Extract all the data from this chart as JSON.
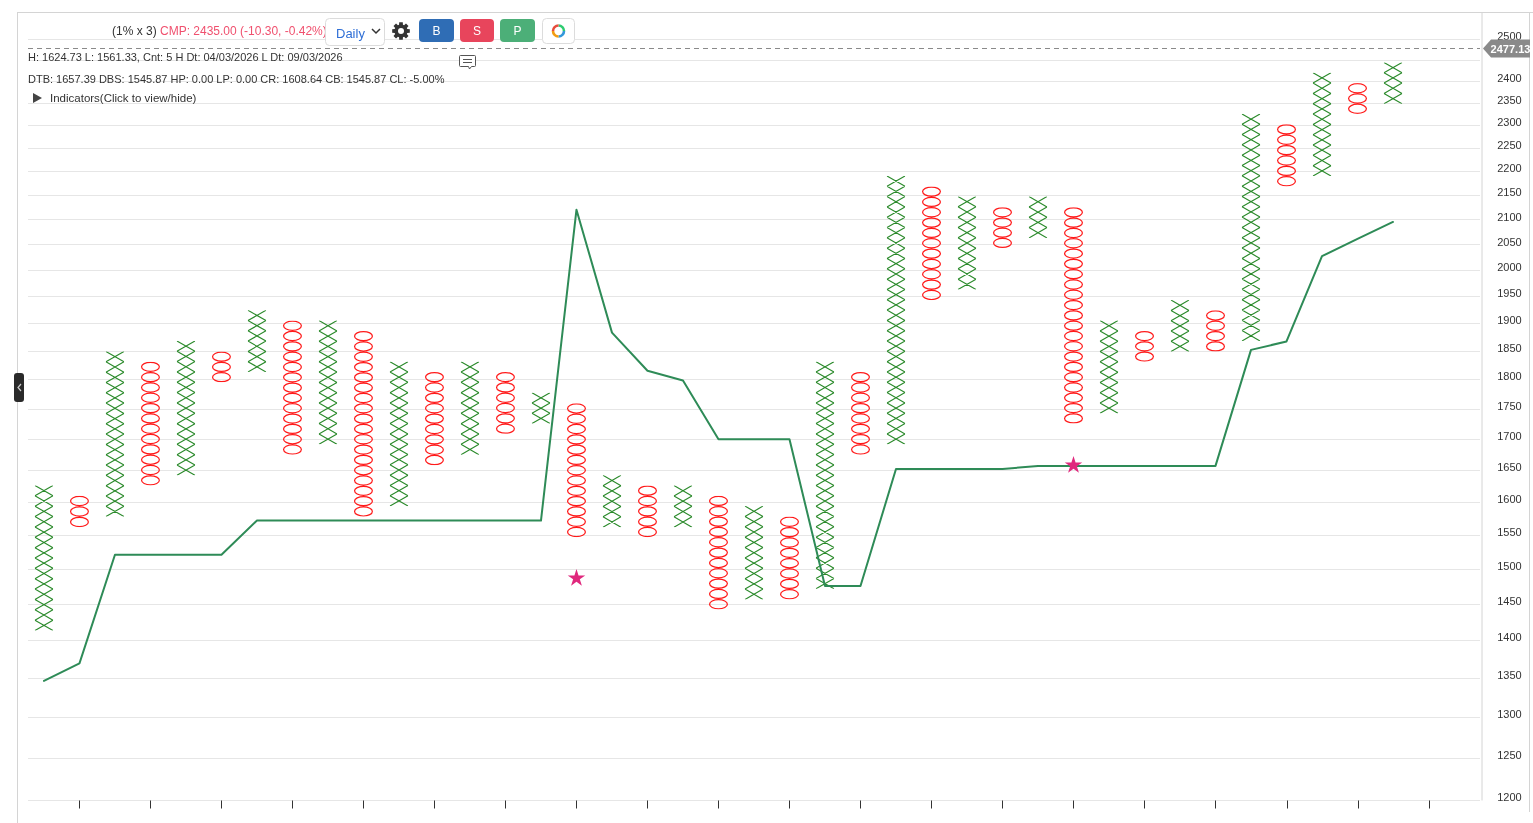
{
  "chart_data": {
    "type": "bar",
    "categories": [
      null,
      null,
      null,
      null,
      null,
      null,
      null,
      null,
      null,
      null,
      null,
      null,
      null,
      null,
      null,
      null,
      null,
      null,
      null,
      null,
      null,
      null,
      null,
      null,
      null,
      null,
      null,
      null,
      null,
      null,
      null,
      null,
      null,
      null,
      null,
      null,
      null,
      null,
      null
    ],
    "ylim": [
      1200,
      2565
    ],
    "yticks": [
      1200,
      1250,
      1300,
      1350,
      1400,
      1450,
      1500,
      1550,
      1600,
      1650,
      1700,
      1750,
      1800,
      1850,
      1900,
      1950,
      2000,
      2050,
      2100,
      2150,
      2200,
      2250,
      2300,
      2350,
      2400,
      {
        "value": 2450,
        "label": null
      },
      2500
    ],
    "log": true,
    "grid": "y",
    "tick_labels": "y",
    "series": [
      {
        "color": "#2b8a2b",
        "marker": "cross",
        "values": [
          212,
          null,
          272,
          null,
          227,
          null,
          111,
          null,
          214,
          null,
          238,
          null,
          157,
          null,
          52,
          null,
          80,
          null,
          64,
          null,
          137,
          null,
          360,
          null,
          499,
          null,
          184,
          null,
          84,
          null,
          163,
          null,
          94,
          null,
          457,
          null,
          229,
          null,
          95
        ],
        "base": [
          1413,
          null,
          1577,
          null,
          1641,
          null,
          1813,
          null,
          1691,
          null,
          1593,
          null,
          1674,
          null,
          1725,
          null,
          1561,
          null,
          1561,
          null,
          1456,
          null,
          1471,
          null,
          1691,
          null,
          1963,
          null,
          2063,
          null,
          1742,
          null,
          1849,
          null,
          1868,
          null,
          2190,
          null,
          2348
        ]
      },
      {
        "color": "#ff1a1a",
        "marker": "circle",
        "values": [
          null,
          48,
          null,
          206,
          null,
          54,
          null,
          231,
          null,
          309,
          null,
          156,
          null,
          105,
          null,
          213,
          null,
          79,
          null,
          167,
          null,
          121,
          null,
          139,
          null,
          225,
          null,
          82,
          null,
          400,
          null,
          55,
          null,
          75,
          null,
          134,
          null,
          70,
          null
        ],
        "base": [
          null,
          1561,
          null,
          1625,
          null,
          1795,
          null,
          1674,
          null,
          1577,
          null,
          1657,
          null,
          1708,
          null,
          1546,
          null,
          1546,
          null,
          1442,
          null,
          1456,
          null,
          1674,
          null,
          1943,
          null,
          2043,
          null,
          1725,
          null,
          1831,
          null,
          1849,
          null,
          2168,
          null,
          2325,
          null
        ]
      },
      {
        "type": "line",
        "color": "#2e8b57",
        "marker": "none",
        "line_style": "solid",
        "values": [
          1346,
          1369,
          1520,
          1520,
          1520,
          1520,
          1571,
          1571,
          1571,
          1571,
          1571,
          1571,
          1571,
          1571,
          1571,
          2120,
          1883,
          1815,
          1798,
          1699,
          1699,
          1699,
          1475,
          1475,
          1651,
          1651,
          1651,
          1651,
          1656,
          1656,
          1656,
          1656,
          1656,
          1656,
          1852,
          1867,
          2027,
          2061,
          2095
        ]
      },
      {
        "type": "scatter",
        "color": "#e0287d",
        "marker": "star",
        "values": [
          null,
          null,
          null,
          null,
          null,
          null,
          null,
          null,
          null,
          null,
          null,
          null,
          null,
          null,
          null,
          1486,
          null,
          null,
          null,
          null,
          null,
          null,
          null,
          null,
          null,
          null,
          null,
          null,
          null,
          1657,
          null,
          null,
          null,
          null,
          null,
          null,
          null,
          null,
          null
        ]
      }
    ],
    "ref_lines": [
      {
        "axis": "y",
        "value": 2477.13,
        "label": "2477.13",
        "line_style": "dashed",
        "color": "#8a8a8a"
      }
    ],
    "annotations": [
      "(1% x 3)",
      "CMP: 2435.00 (-10.30, -0.42%)",
      "Daily",
      "B",
      "S",
      "P",
      "H: 1624.73 L: 1561.33, Cnt: 5 H Dt: 04/03/2026 L Dt: 09/03/2026",
      "DTB: 1657.39 DBS: 1545.87 HP: 0.00 LP: 0.00 CR: 1608.64 CB: 1545.87 CL: -5.00%",
      "Indicators(Click to view/hide)"
    ]
  }
}
